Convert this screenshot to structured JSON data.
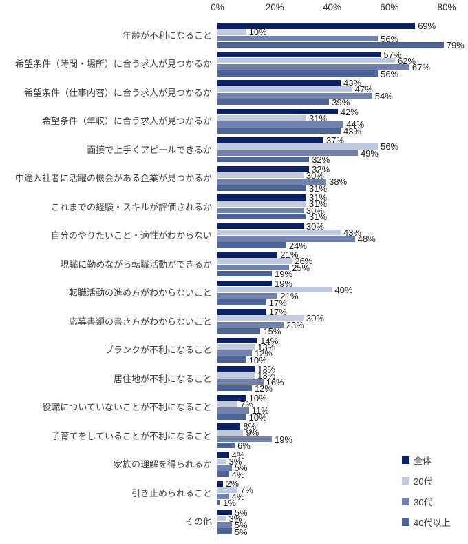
{
  "chart_data": {
    "type": "bar",
    "orientation": "horizontal",
    "title": "",
    "value_suffix": "%",
    "xlim": [
      0,
      80
    ],
    "grid": false,
    "legend_position": "bottom-right",
    "axis_ticks": [
      "0%",
      "20%",
      "40%",
      "60%",
      "80%"
    ],
    "categories": [
      "年齢が不利になること",
      "希望条件（時間・場所）に合う求人が見つかるか",
      "希望条件（仕事内容）に合う求人が見つかるか",
      "希望条件（年収）に合う求人が見つかるか",
      "面接で上手くアピールできるか",
      "中途入社者に活躍の機会がある企業が見つかるか",
      "これまでの経験・スキルが評価されるか",
      "自分のやりたいこと・適性がわからない",
      "現職に勤めながら転職活動ができるか",
      "転職活動の進め方がわからないこと",
      "応募書類の書き方がわからないこと",
      "ブランクが不利になること",
      "居住地が不利になること",
      "役職についていないことが不利になること",
      "子育てをしていることが不利になること",
      "家族の理解を得られるか",
      "引き止められること",
      "その他"
    ],
    "series": [
      {
        "name": "全体",
        "color": "#0B2163",
        "values": [
          69,
          57,
          43,
          42,
          37,
          32,
          31,
          30,
          21,
          19,
          17,
          14,
          13,
          10,
          8,
          4,
          2,
          5
        ]
      },
      {
        "name": "20代",
        "color": "#C0CBE2",
        "values": [
          10,
          62,
          47,
          31,
          56,
          30,
          31,
          43,
          26,
          40,
          30,
          13,
          13,
          7,
          9,
          3,
          7,
          3
        ]
      },
      {
        "name": "30代",
        "color": "#7182AD",
        "values": [
          56,
          67,
          54,
          44,
          49,
          38,
          30,
          48,
          25,
          21,
          23,
          12,
          16,
          11,
          19,
          5,
          4,
          5
        ]
      },
      {
        "name": "40代以上",
        "color": "#4E6396",
        "values": [
          79,
          56,
          39,
          43,
          32,
          31,
          31,
          24,
          19,
          17,
          15,
          10,
          12,
          10,
          6,
          4,
          1,
          5
        ]
      }
    ]
  }
}
